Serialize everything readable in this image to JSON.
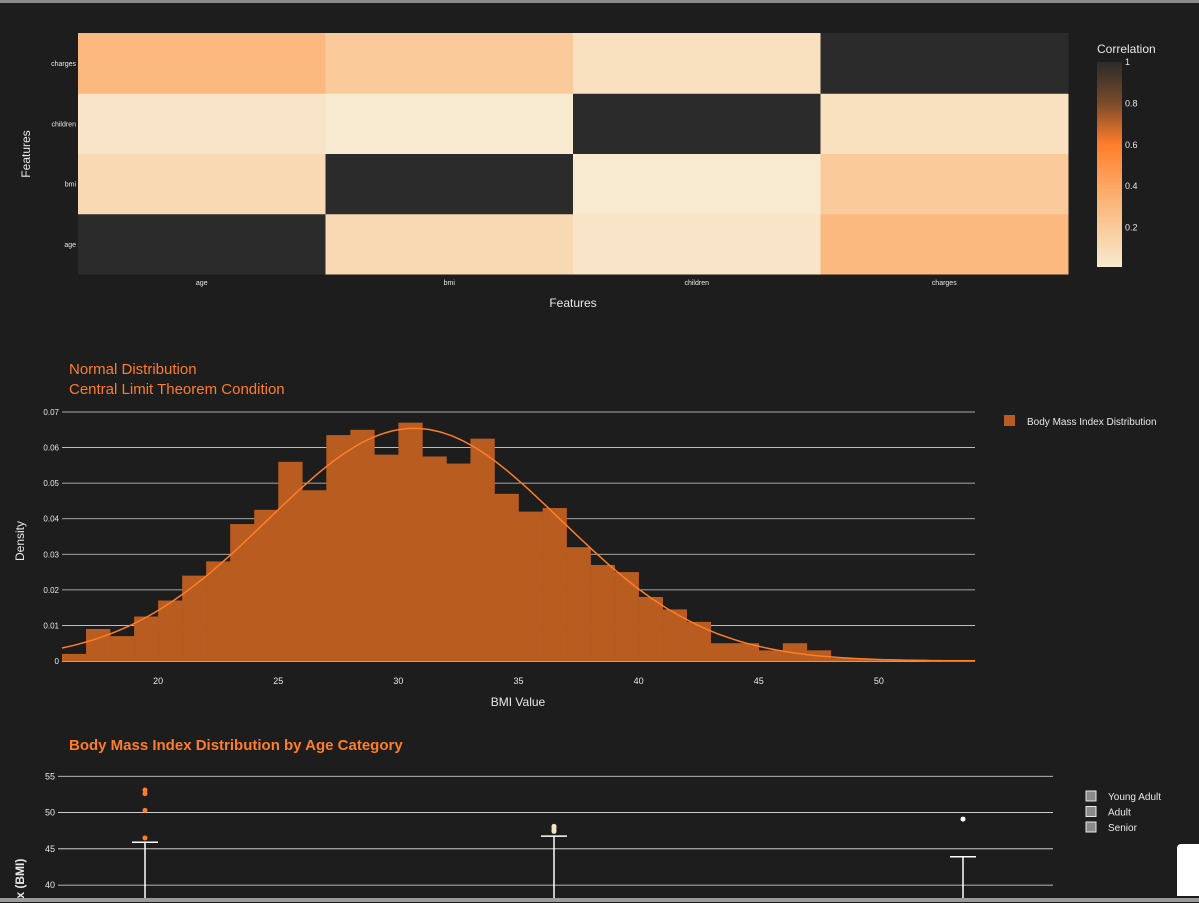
{
  "heatmap": {
    "type": "heatmap",
    "x_categories": [
      "age",
      "bmi",
      "children",
      "charges"
    ],
    "y_categories": [
      "age",
      "bmi",
      "children",
      "charges"
    ],
    "z": [
      [
        1.0,
        0.11,
        0.04,
        0.3
      ],
      [
        0.11,
        1.0,
        0.01,
        0.2
      ],
      [
        0.04,
        0.01,
        1.0,
        0.07
      ],
      [
        0.3,
        0.2,
        0.07,
        1.0
      ]
    ],
    "xlabel": "Features",
    "ylabel": "Features",
    "colorbar": {
      "title": "Correlation",
      "ticks": [
        "0.2",
        "0.4",
        "0.6",
        "0.8",
        "1"
      ],
      "tick_values": [
        0.2,
        0.4,
        0.6,
        0.8,
        1.0
      ],
      "range": [
        0.01,
        1.0
      ]
    },
    "colors": {
      "low": "#f8ead0",
      "mid": "#ff7d2a",
      "high": "#2b2b2b"
    }
  },
  "histogram": {
    "type": "bar",
    "title_line1": "Normal Distribution",
    "title_line2": "Central Limit Theorem Condition",
    "xlabel": "BMI Value",
    "ylabel": "Density",
    "xlim": [
      16,
      54
    ],
    "ylim": [
      0,
      0.07
    ],
    "x_ticks": [
      20,
      25,
      30,
      35,
      40,
      45,
      50
    ],
    "y_ticks": [
      0,
      0.01,
      0.02,
      0.03,
      0.04,
      0.05,
      0.06,
      0.07
    ],
    "y_tick_labels": [
      "0",
      "0.01",
      "0.02",
      "0.03",
      "0.04",
      "0.05",
      "0.06",
      "0.07"
    ],
    "bin_width": 1,
    "bin_start": 16,
    "values": [
      0.002,
      0.009,
      0.007,
      0.0125,
      0.017,
      0.024,
      0.028,
      0.0385,
      0.0425,
      0.056,
      0.048,
      0.0635,
      0.065,
      0.058,
      0.067,
      0.0575,
      0.0555,
      0.0625,
      0.047,
      0.042,
      0.043,
      0.032,
      0.027,
      0.025,
      0.018,
      0.0145,
      0.011,
      0.005,
      0.005,
      0.003,
      0.005,
      0.003,
      0.0008,
      0.0005,
      0.0005,
      0.0004,
      0.0003,
      0.0003
    ],
    "curve": {
      "mean": 30.66,
      "std": 6.1
    },
    "legend": "Body Mass Index Distribution",
    "colors": {
      "bar": "#b85c20",
      "curve": "#ff7d2a"
    }
  },
  "boxplot": {
    "type": "box",
    "title": "Body Mass Index Distribution by Age Category",
    "ylabel": "ex (BMI)",
    "y_ticks": [
      40,
      45,
      50,
      55
    ],
    "ylim": [
      38.5,
      56
    ],
    "categories": [
      "Young Adult",
      "Adult",
      "Senior"
    ],
    "upper_whiskers": [
      45.9,
      46.75,
      43.9
    ],
    "outliers": [
      [
        46.5,
        50.3,
        52.6,
        53.1
      ],
      [
        47.4,
        47.6,
        47.9,
        48.1
      ],
      [
        49.1
      ]
    ],
    "legend": [
      "Young Adult",
      "Adult",
      "Senior"
    ],
    "colors": {
      "young": "#ff7d2a",
      "adult": "#f5e6c0",
      "senior": "#ffffff"
    }
  }
}
